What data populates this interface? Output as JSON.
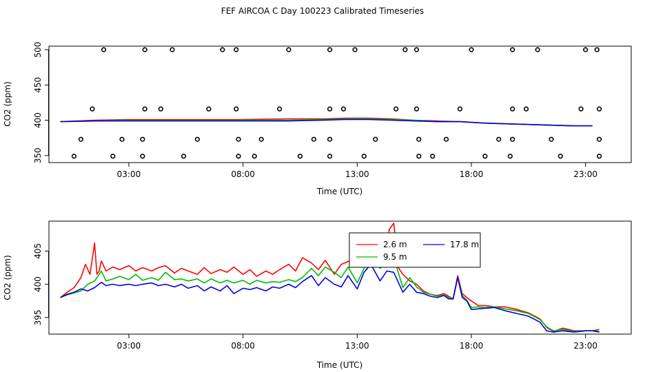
{
  "title": "FEF AIRCOA C  Day 100223  Calibrated Timeseries",
  "chart_data": [
    {
      "type": "scatter",
      "title": "",
      "xlabel": "Time (UTC)",
      "ylabel": "CO2 (ppm)",
      "xlim": [
        -0.5,
        25.0
      ],
      "ylim": [
        340,
        505
      ],
      "xticks": [
        3,
        8,
        13,
        18,
        23
      ],
      "xtick_labels": [
        "03:00",
        "08:00",
        "13:00",
        "18:00",
        "23:00"
      ],
      "yticks": [
        350,
        400,
        450,
        500
      ],
      "ytick_labels": [
        "350",
        "400",
        "450",
        "500"
      ],
      "points": [
        [
          1.9,
          500
        ],
        [
          3.7,
          500
        ],
        [
          4.9,
          500
        ],
        [
          7.1,
          500
        ],
        [
          7.7,
          500
        ],
        [
          10.0,
          500
        ],
        [
          11.8,
          500
        ],
        [
          12.9,
          500
        ],
        [
          15.1,
          500
        ],
        [
          15.6,
          500
        ],
        [
          18.0,
          500
        ],
        [
          19.8,
          500
        ],
        [
          20.9,
          500
        ],
        [
          23.0,
          500
        ],
        [
          23.5,
          500
        ],
        [
          1.4,
          416
        ],
        [
          3.7,
          416
        ],
        [
          4.4,
          416
        ],
        [
          6.5,
          416
        ],
        [
          7.7,
          416
        ],
        [
          9.6,
          416
        ],
        [
          11.8,
          416
        ],
        [
          12.4,
          416
        ],
        [
          14.7,
          416
        ],
        [
          15.6,
          416
        ],
        [
          17.5,
          416
        ],
        [
          19.8,
          416
        ],
        [
          20.4,
          416
        ],
        [
          22.8,
          416
        ],
        [
          23.6,
          416
        ],
        [
          0.9,
          373
        ],
        [
          2.7,
          373
        ],
        [
          3.6,
          373
        ],
        [
          6.0,
          373
        ],
        [
          7.8,
          373
        ],
        [
          8.8,
          373
        ],
        [
          11.1,
          373
        ],
        [
          11.8,
          373
        ],
        [
          13.8,
          373
        ],
        [
          15.7,
          373
        ],
        [
          16.9,
          373
        ],
        [
          19.2,
          373
        ],
        [
          19.8,
          373
        ],
        [
          21.5,
          373
        ],
        [
          23.6,
          373
        ],
        [
          0.6,
          349
        ],
        [
          2.3,
          349
        ],
        [
          3.6,
          349
        ],
        [
          5.4,
          349
        ],
        [
          7.8,
          349
        ],
        [
          8.5,
          349
        ],
        [
          10.5,
          349
        ],
        [
          11.8,
          349
        ],
        [
          13.3,
          349
        ],
        [
          15.7,
          349
        ],
        [
          16.3,
          349
        ],
        [
          18.6,
          349
        ],
        [
          19.7,
          349
        ],
        [
          21.9,
          349
        ],
        [
          23.6,
          349
        ]
      ],
      "series": [
        {
          "name": "2.6 m",
          "color": "#ff0000",
          "x": [
            0,
            1.5,
            3,
            5,
            8,
            10,
            11.5,
            12.5,
            13.5,
            14.5,
            15.5,
            16.5,
            17.5,
            18.5,
            19.5,
            20.5,
            21.5,
            22.5,
            23.3
          ],
          "y": [
            398,
            400,
            401,
            401,
            401,
            402,
            402,
            403,
            403,
            402,
            400,
            399,
            398,
            396,
            395,
            394,
            393,
            392,
            392
          ]
        },
        {
          "name": "9.5 m",
          "color": "#00bb00",
          "x": [
            0,
            1.5,
            3,
            5,
            8,
            10,
            11.5,
            12.5,
            13.5,
            14.5,
            15.5,
            16.5,
            17.5,
            18.5,
            19.5,
            20.5,
            21.5,
            22.5,
            23.3
          ],
          "y": [
            398,
            399,
            400,
            400,
            400,
            400,
            401,
            402,
            402,
            401,
            400,
            398,
            398,
            396,
            395,
            394,
            393,
            392,
            392
          ]
        },
        {
          "name": "17.8 m",
          "color": "#0000dd",
          "x": [
            0,
            1.5,
            3,
            5,
            8,
            10,
            11.5,
            12.5,
            13.5,
            14.5,
            15.5,
            16.5,
            17.5,
            18.5,
            19.5,
            20.5,
            21.5,
            22.5,
            23.3
          ],
          "y": [
            398,
            399,
            399,
            399,
            399,
            399,
            400,
            401,
            401,
            400,
            399,
            398,
            398,
            396,
            395,
            394,
            393,
            392,
            392
          ]
        }
      ]
    },
    {
      "type": "line",
      "title": "",
      "xlabel": "Time (UTC)",
      "ylabel": "CO2 (ppm)",
      "xlim": [
        -0.5,
        25.0
      ],
      "ylim": [
        392.5,
        409.5
      ],
      "xticks": [
        3,
        8,
        13,
        18,
        23
      ],
      "xtick_labels": [
        "03:00",
        "08:00",
        "13:00",
        "18:00",
        "23:00"
      ],
      "yticks": [
        395,
        400,
        405
      ],
      "ytick_labels": [
        "395",
        "400",
        "405"
      ],
      "legend": {
        "position": "top-center",
        "entries": [
          "2.6 m",
          "9.5 m",
          "17.8 m"
        ]
      },
      "series": [
        {
          "name": "2.6 m",
          "color": "#ff0000",
          "x": [
            0,
            0.3,
            0.6,
            0.9,
            1.1,
            1.3,
            1.5,
            1.6,
            1.7,
            1.8,
            2.0,
            2.3,
            2.6,
            3.0,
            3.3,
            3.6,
            4.0,
            4.3,
            4.6,
            5.0,
            5.3,
            5.6,
            6.0,
            6.3,
            6.6,
            7.0,
            7.3,
            7.6,
            8.0,
            8.3,
            8.6,
            9.0,
            9.3,
            9.6,
            10.0,
            10.3,
            10.6,
            11.0,
            11.3,
            11.6,
            12.0,
            12.3,
            12.6,
            13.0,
            13.3,
            13.6,
            14.0,
            14.2,
            14.4,
            14.6,
            14.8,
            15.0,
            15.3,
            15.6,
            15.9,
            16.2,
            16.5,
            16.8,
            17.0,
            17.2,
            17.4,
            17.6,
            17.8,
            18.0,
            18.3,
            18.6,
            19.0,
            19.5,
            20.0,
            20.5,
            21.0,
            21.3,
            21.6,
            22.0,
            22.5,
            23.0,
            23.3,
            23.6
          ],
          "y": [
            398.0,
            398.8,
            399.5,
            401.0,
            403.0,
            401.5,
            406.2,
            401.5,
            402.0,
            403.5,
            402.0,
            402.6,
            402.2,
            402.8,
            402.0,
            402.5,
            402.0,
            402.5,
            402.8,
            401.7,
            402.4,
            402.0,
            401.5,
            402.5,
            401.6,
            402.2,
            401.8,
            402.6,
            401.5,
            402.2,
            401.2,
            402.0,
            401.5,
            402.2,
            403.0,
            402.0,
            404.0,
            403.2,
            402.2,
            403.6,
            401.5,
            403.0,
            403.4,
            404.4,
            404.0,
            405.2,
            403.4,
            403.8,
            408.2,
            409.2,
            402.5,
            401.5,
            400.5,
            400.0,
            399.0,
            398.5,
            398.3,
            398.6,
            398.2,
            397.8,
            401.3,
            398.6,
            398.0,
            397.5,
            396.8,
            396.8,
            396.6,
            396.6,
            396.2,
            395.7,
            394.8,
            393.5,
            392.9,
            393.4,
            393.0,
            393.0,
            393.0,
            393.2
          ]
        },
        {
          "name": "9.5 m",
          "color": "#00bb00",
          "x": [
            0,
            0.3,
            0.6,
            0.9,
            1.2,
            1.5,
            1.8,
            2.0,
            2.3,
            2.6,
            3.0,
            3.3,
            3.6,
            4.0,
            4.3,
            4.6,
            5.0,
            5.3,
            5.6,
            6.0,
            6.3,
            6.6,
            7.0,
            7.3,
            7.6,
            8.0,
            8.3,
            8.6,
            9.0,
            9.3,
            9.6,
            10.0,
            10.3,
            10.6,
            11.0,
            11.3,
            11.6,
            12.0,
            12.3,
            12.6,
            13.0,
            13.3,
            13.6,
            14.0,
            14.3,
            14.6,
            15.0,
            15.3,
            15.6,
            15.9,
            16.2,
            16.5,
            16.8,
            17.0,
            17.2,
            17.4,
            17.6,
            17.8,
            18.0,
            18.3,
            18.6,
            19.0,
            19.5,
            20.0,
            20.5,
            21.0,
            21.3,
            21.6,
            22.0,
            22.5,
            23.0,
            23.3,
            23.6
          ],
          "y": [
            398.0,
            398.4,
            398.7,
            399.0,
            400.0,
            400.5,
            402.0,
            400.5,
            400.8,
            401.2,
            400.7,
            401.5,
            400.6,
            401.0,
            400.6,
            401.8,
            400.7,
            400.8,
            400.5,
            400.8,
            400.2,
            400.8,
            400.2,
            400.6,
            400.2,
            400.6,
            400.0,
            400.6,
            400.2,
            400.4,
            400.3,
            400.7,
            400.4,
            401.0,
            402.4,
            401.3,
            402.6,
            401.8,
            401.0,
            402.6,
            400.2,
            402.4,
            404.2,
            402.4,
            403.2,
            404.0,
            399.5,
            401.0,
            399.6,
            398.8,
            398.5,
            398.2,
            398.4,
            398.0,
            397.8,
            401.0,
            398.3,
            397.6,
            396.5,
            396.6,
            396.5,
            396.6,
            396.3,
            396.0,
            395.6,
            394.7,
            393.6,
            393.0,
            393.2,
            392.9,
            393.0,
            393.0,
            392.9
          ]
        },
        {
          "name": "17.8 m",
          "color": "#0000dd",
          "x": [
            0,
            0.3,
            0.6,
            0.9,
            1.2,
            1.5,
            1.8,
            2.0,
            2.3,
            2.6,
            3.0,
            3.3,
            3.6,
            4.0,
            4.3,
            4.6,
            5.0,
            5.3,
            5.6,
            6.0,
            6.3,
            6.6,
            7.0,
            7.3,
            7.6,
            8.0,
            8.3,
            8.6,
            9.0,
            9.3,
            9.6,
            10.0,
            10.3,
            10.6,
            11.0,
            11.3,
            11.6,
            12.0,
            12.3,
            12.6,
            13.0,
            13.3,
            13.6,
            14.0,
            14.3,
            14.6,
            15.0,
            15.3,
            15.6,
            15.9,
            16.2,
            16.5,
            16.8,
            17.0,
            17.2,
            17.4,
            17.6,
            17.8,
            18.0,
            18.3,
            18.6,
            19.0,
            19.5,
            20.0,
            20.5,
            21.0,
            21.3,
            21.6,
            22.0,
            22.5,
            23.0,
            23.3,
            23.6
          ],
          "y": [
            398.0,
            398.5,
            398.8,
            399.3,
            399.0,
            399.5,
            400.3,
            399.8,
            400.0,
            399.8,
            400.0,
            399.8,
            400.0,
            400.2,
            399.8,
            400.0,
            399.6,
            400.0,
            399.4,
            399.8,
            399.0,
            399.6,
            399.0,
            399.8,
            398.6,
            399.4,
            399.2,
            399.5,
            399.0,
            399.6,
            399.4,
            400.0,
            399.5,
            400.4,
            401.3,
            399.8,
            401.0,
            400.0,
            399.6,
            401.3,
            399.3,
            401.8,
            403.0,
            400.5,
            402.0,
            401.8,
            398.8,
            400.0,
            398.8,
            398.6,
            398.2,
            398.0,
            398.3,
            397.8,
            397.8,
            401.0,
            398.0,
            397.5,
            396.2,
            396.3,
            396.4,
            396.5,
            396.0,
            395.6,
            395.2,
            394.3,
            393.0,
            392.8,
            393.0,
            392.8,
            393.0,
            393.0,
            392.8
          ]
        }
      ]
    }
  ]
}
